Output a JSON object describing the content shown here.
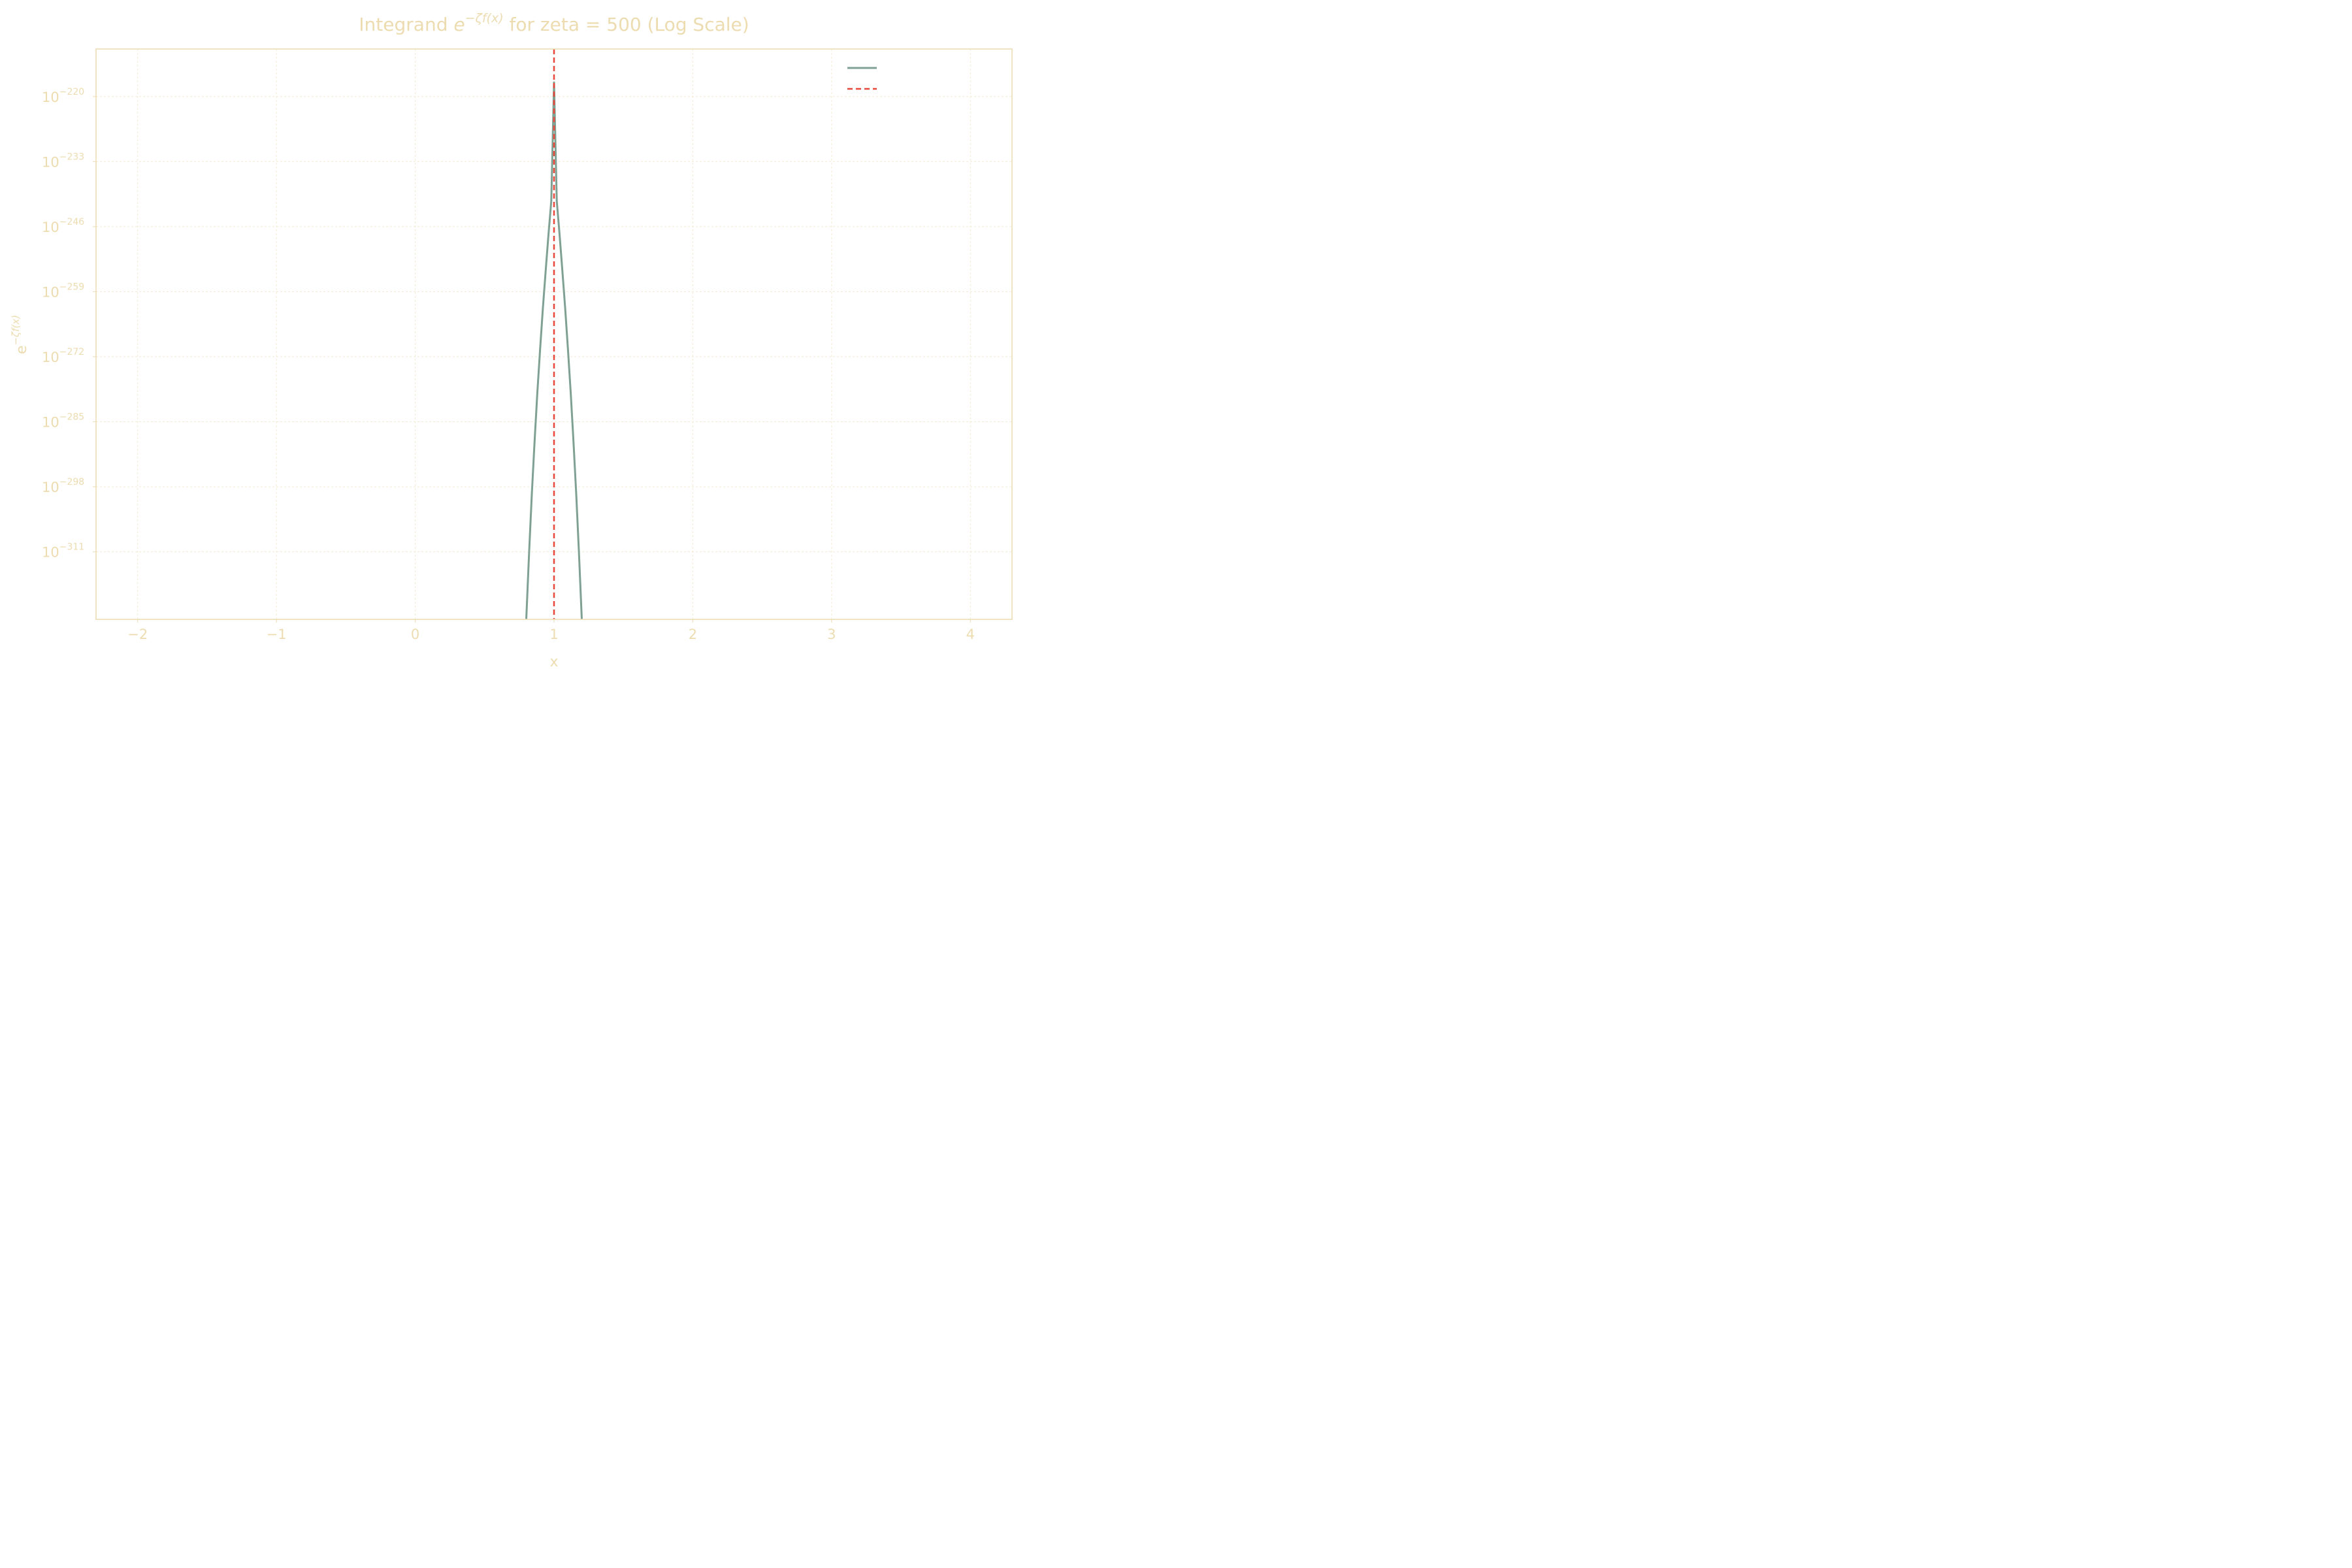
{
  "colors": {
    "text": "#ecdcb0",
    "frame": "#ecdcb0",
    "grid": "#f3ead3",
    "curve": "#7fa193",
    "marker": "#e8473a",
    "background": "#ffffff"
  },
  "chart_data": {
    "type": "line",
    "title": {
      "prefix": "Integrand ",
      "math_base": "e",
      "math_exponent": "−ζf(x)",
      "suffix": " for zeta = 500 (Log Scale)"
    },
    "xlabel": "x",
    "ylabel": {
      "base": "e",
      "exponent": "−ζf(x)"
    },
    "y_scale": "log",
    "grid": true,
    "legend_position": "top-right",
    "xlim": [
      -2.3,
      4.3
    ],
    "ylim_log10": [
      -324.5,
      -210.5
    ],
    "x_ticks": [
      {
        "value": -2,
        "label": "−2"
      },
      {
        "value": -1,
        "label": "−1"
      },
      {
        "value": 0,
        "label": "0"
      },
      {
        "value": 1,
        "label": "1"
      },
      {
        "value": 2,
        "label": "2"
      },
      {
        "value": 3,
        "label": "3"
      },
      {
        "value": 4,
        "label": "4"
      }
    ],
    "y_ticks": [
      {
        "log10": -220,
        "base": "10",
        "exp": "−220"
      },
      {
        "log10": -233,
        "base": "10",
        "exp": "−233"
      },
      {
        "log10": -246,
        "base": "10",
        "exp": "−246"
      },
      {
        "log10": -259,
        "base": "10",
        "exp": "−259"
      },
      {
        "log10": -272,
        "base": "10",
        "exp": "−272"
      },
      {
        "log10": -285,
        "base": "10",
        "exp": "−285"
      },
      {
        "log10": -298,
        "base": "10",
        "exp": "−298"
      },
      {
        "log10": -311,
        "base": "10",
        "exp": "−311"
      }
    ],
    "series": [
      {
        "kind": "curve",
        "color": "#7fa193",
        "style": "solid",
        "x": [
          0.8,
          0.82,
          0.84,
          0.86,
          0.88,
          0.9,
          0.92,
          0.94,
          0.96,
          0.98,
          1.0,
          1.02,
          1.04,
          1.06,
          1.08,
          1.1,
          1.12,
          1.14,
          1.16,
          1.18,
          1.2
        ],
        "y_log10": [
          -324.5,
          -311.3,
          -299.5,
          -288.8,
          -279.1,
          -270.3,
          -262.2,
          -254.7,
          -247.6,
          -240.9,
          -217.2,
          -240.9,
          -247.6,
          -254.7,
          -262.2,
          -270.3,
          -279.1,
          -288.8,
          -299.5,
          -311.3,
          -324.5
        ]
      },
      {
        "kind": "vertical-line",
        "color": "#e8473a",
        "style": "dashed",
        "x": 1
      }
    ]
  }
}
